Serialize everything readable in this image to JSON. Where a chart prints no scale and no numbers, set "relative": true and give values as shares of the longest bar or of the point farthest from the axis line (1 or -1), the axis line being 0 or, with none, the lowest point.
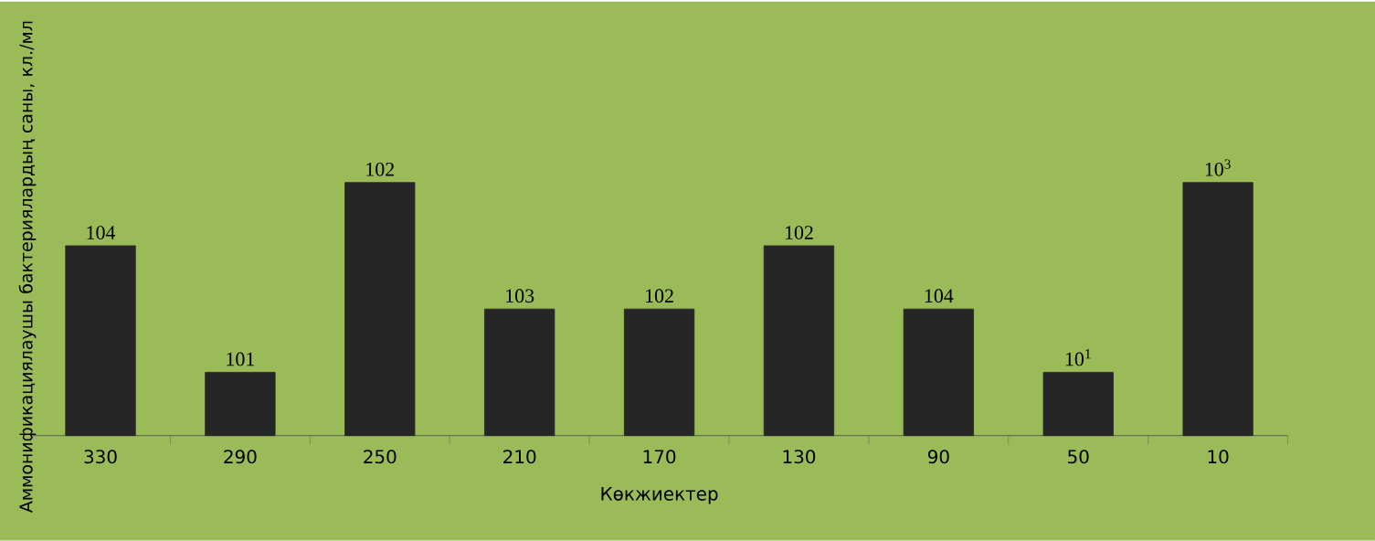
{
  "chart_data": {
    "type": "bar",
    "relative": true,
    "xlabel": "Көкжиектер",
    "ylabel": "Аммонификациялаушы бактериялардың саны, кл./мл",
    "categories": [
      "330",
      "290",
      "250",
      "210",
      "170",
      "130",
      "90",
      "50",
      "10"
    ],
    "values": [
      0.75,
      0.25,
      1,
      0.5,
      0.5,
      0.75,
      0.5,
      0.25,
      1
    ],
    "annotations": [
      "104",
      "101",
      "102",
      "103",
      "102",
      "102",
      "104",
      "10$^{1}$",
      "10$^{3}$"
    ],
    "color": "#262626"
  }
}
